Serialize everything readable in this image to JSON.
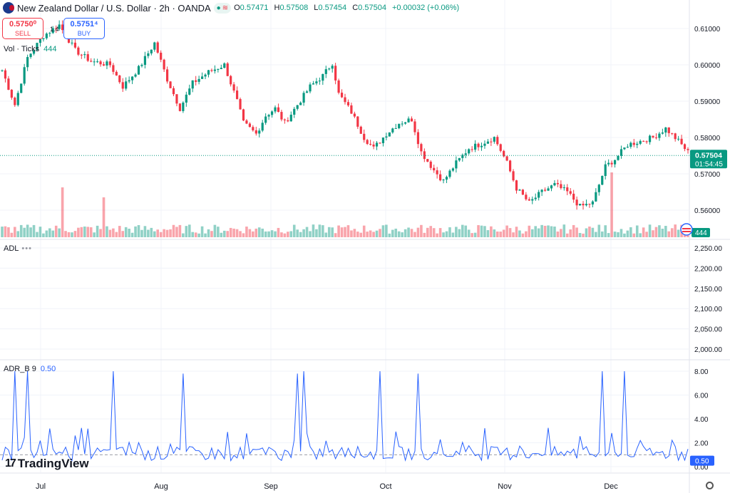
{
  "header": {
    "title": "New Zealand Dollar / U.S. Dollar · 2h · OANDA",
    "open_label": "O",
    "open": "0.57471",
    "high_label": "H",
    "high": "0.57508",
    "low_label": "L",
    "low": "0.57454",
    "close_label": "C",
    "close": "0.57504",
    "change": "+0.00032 (+0.06%)"
  },
  "trade": {
    "sell_price": "0.5750⁰",
    "sell_label": "SELL",
    "buy_price": "0.5751⁴",
    "buy_label": "BUY",
    "spread": "1.4"
  },
  "panes": {
    "volume_label": "Vol · Ticks",
    "volume_value": "444",
    "adl_label": "ADL",
    "adr_label": "ADR_B 9",
    "adr_value": "0.50"
  },
  "price_axis": {
    "ticks": [
      "0.61000",
      "0.60000",
      "0.59000",
      "0.58000",
      "0.57000",
      "0.56000"
    ],
    "last_price": "0.57504",
    "countdown": "01:54:45",
    "volume_badge": "444"
  },
  "adl_axis": {
    "ticks": [
      "2,250.00",
      "2,200.00",
      "2,150.00",
      "2,100.00",
      "2,050.00",
      "2,000.00"
    ]
  },
  "adr_axis": {
    "ticks": [
      "8.00",
      "6.00",
      "4.00",
      "2.00",
      "0.00"
    ],
    "last": "0.50"
  },
  "time_axis": {
    "labels": [
      "Jul",
      "Aug",
      "Sep",
      "Oct",
      "Nov",
      "Dec"
    ]
  },
  "branding": {
    "logo": "TradingView"
  },
  "colors": {
    "up": "#089981",
    "down": "#f23645",
    "adr_line": "#2962ff"
  },
  "chart_data": [
    {
      "type": "candlestick",
      "title": "New Zealand Dollar / U.S. Dollar · 2h · OANDA",
      "x_labels": [
        "Jul",
        "Aug",
        "Sep",
        "Oct",
        "Nov",
        "Dec"
      ],
      "ylim": [
        0.5545,
        0.6145
      ],
      "close_path": [
        {
          "x": 0,
          "y": 0.5985
        },
        {
          "x": 4,
          "y": 0.589
        },
        {
          "x": 8,
          "y": 0.602
        },
        {
          "x": 13,
          "y": 0.608
        },
        {
          "x": 18,
          "y": 0.611
        },
        {
          "x": 23,
          "y": 0.604
        },
        {
          "x": 28,
          "y": 0.601
        },
        {
          "x": 34,
          "y": 0.6
        },
        {
          "x": 38,
          "y": 0.594
        },
        {
          "x": 43,
          "y": 0.599
        },
        {
          "x": 48,
          "y": 0.606
        },
        {
          "x": 52,
          "y": 0.596
        },
        {
          "x": 56,
          "y": 0.588
        },
        {
          "x": 60,
          "y": 0.595
        },
        {
          "x": 65,
          "y": 0.598
        },
        {
          "x": 70,
          "y": 0.6
        },
        {
          "x": 74,
          "y": 0.59
        },
        {
          "x": 76,
          "y": 0.584
        },
        {
          "x": 80,
          "y": 0.581
        },
        {
          "x": 83,
          "y": 0.586
        },
        {
          "x": 86,
          "y": 0.588
        },
        {
          "x": 89,
          "y": 0.584
        },
        {
          "x": 93,
          "y": 0.589
        },
        {
          "x": 97,
          "y": 0.594
        },
        {
          "x": 101,
          "y": 0.597
        },
        {
          "x": 104,
          "y": 0.6005
        },
        {
          "x": 106,
          "y": 0.592
        },
        {
          "x": 110,
          "y": 0.587
        },
        {
          "x": 114,
          "y": 0.58
        },
        {
          "x": 117,
          "y": 0.577
        },
        {
          "x": 121,
          "y": 0.581
        },
        {
          "x": 125,
          "y": 0.584
        },
        {
          "x": 129,
          "y": 0.585
        },
        {
          "x": 132,
          "y": 0.576
        },
        {
          "x": 136,
          "y": 0.571
        },
        {
          "x": 139,
          "y": 0.568
        },
        {
          "x": 143,
          "y": 0.573
        },
        {
          "x": 147,
          "y": 0.577
        },
        {
          "x": 150,
          "y": 0.578
        },
        {
          "x": 155,
          "y": 0.58
        },
        {
          "x": 159,
          "y": 0.573
        },
        {
          "x": 162,
          "y": 0.566
        },
        {
          "x": 166,
          "y": 0.562
        },
        {
          "x": 170,
          "y": 0.565
        },
        {
          "x": 174,
          "y": 0.567
        },
        {
          "x": 178,
          "y": 0.565
        },
        {
          "x": 182,
          "y": 0.561
        },
        {
          "x": 186,
          "y": 0.562
        },
        {
          "x": 190,
          "y": 0.572
        },
        {
          "x": 193,
          "y": 0.574
        },
        {
          "x": 197,
          "y": 0.578
        },
        {
          "x": 201,
          "y": 0.579
        },
        {
          "x": 205,
          "y": 0.58
        },
        {
          "x": 209,
          "y": 0.5825
        },
        {
          "x": 213,
          "y": 0.579
        },
        {
          "x": 216,
          "y": 0.576
        }
      ]
    },
    {
      "type": "bar",
      "title": "Vol · Ticks",
      "last": 444,
      "spikes": [
        {
          "x": 19,
          "v": 5
        },
        {
          "x": 32,
          "v": 4
        },
        {
          "x": 192,
          "v": 6.5
        }
      ]
    },
    {
      "type": "line",
      "title": "ADL",
      "ylim": [
        1975,
        2275
      ]
    },
    {
      "type": "line",
      "title": "ADR_B 9",
      "ylim": [
        0,
        8.5
      ],
      "last": 0.5,
      "reference_line": 1.0,
      "spikes": [
        {
          "x": 4,
          "y": 8
        },
        {
          "x": 8,
          "y": 8
        },
        {
          "x": 35,
          "y": 8
        },
        {
          "x": 57,
          "y": 7.8
        },
        {
          "x": 93,
          "y": 7.8
        },
        {
          "x": 95,
          "y": 8
        },
        {
          "x": 119,
          "y": 8
        },
        {
          "x": 131,
          "y": 7.8
        },
        {
          "x": 189,
          "y": 8
        },
        {
          "x": 196,
          "y": 8
        }
      ]
    }
  ]
}
